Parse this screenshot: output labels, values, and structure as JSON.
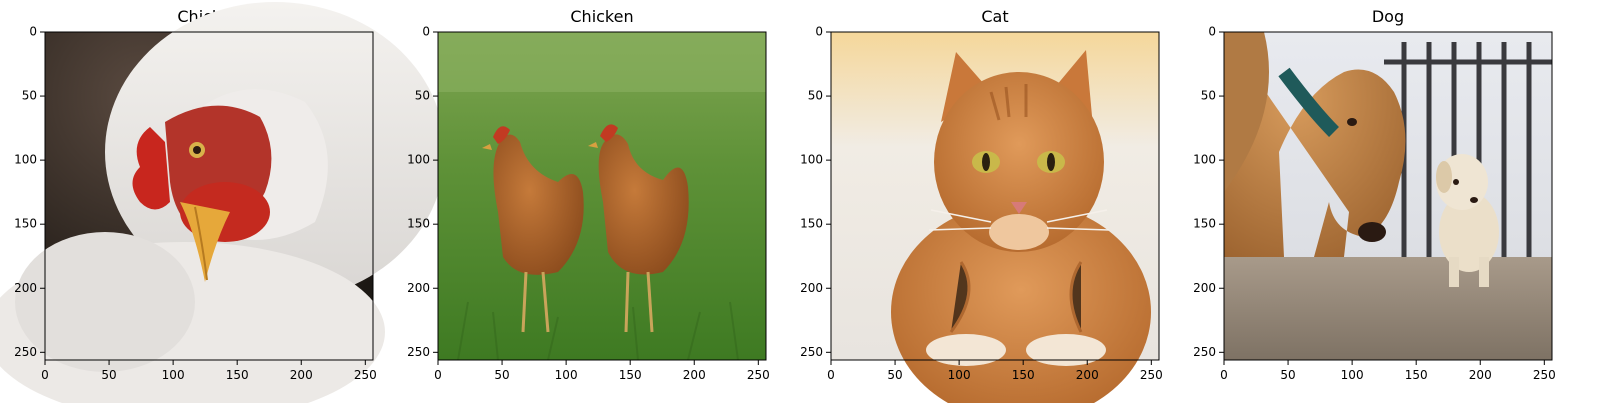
{
  "figure": {
    "panels": [
      {
        "title": "Chicken",
        "scene": "chicken-closeup"
      },
      {
        "title": "Chicken",
        "scene": "two-hens-grass"
      },
      {
        "title": "Cat",
        "scene": "orange-tabby-cat"
      },
      {
        "title": "Dog",
        "scene": "dog-and-puppy"
      }
    ],
    "image_size": [
      256,
      256
    ],
    "x_ticks": [
      "0",
      "50",
      "100",
      "150",
      "200",
      "250"
    ],
    "y_ticks": [
      "0",
      "50",
      "100",
      "150",
      "200",
      "250"
    ],
    "x_tick_values": [
      0,
      50,
      100,
      150,
      200,
      250
    ],
    "y_tick_values": [
      0,
      50,
      100,
      150,
      200,
      250
    ]
  }
}
